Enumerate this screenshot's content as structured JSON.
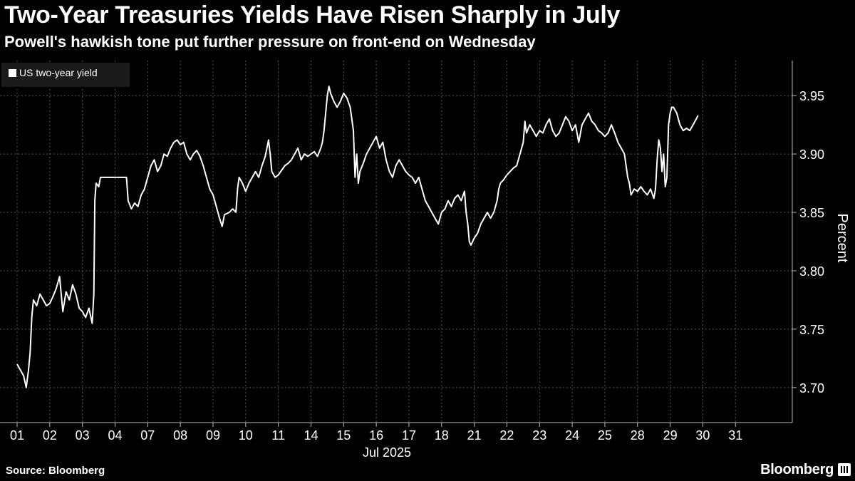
{
  "chart_data": {
    "type": "line",
    "title": "Two-Year Treasuries Yields Have Risen Sharply in July",
    "subtitle": "Powell's hawkish tone put further pressure on front-end on Wednesday",
    "ylabel": "Percent",
    "xlabel": "Jul 2025",
    "ylim": [
      3.67,
      3.98
    ],
    "yticks": [
      3.7,
      3.75,
      3.8,
      3.85,
      3.9,
      3.95
    ],
    "categories": [
      "01",
      "02",
      "03",
      "04",
      "07",
      "08",
      "09",
      "10",
      "11",
      "14",
      "15",
      "16",
      "17",
      "18",
      "21",
      "22",
      "23",
      "24",
      "25",
      "28",
      "29",
      "30",
      "31"
    ],
    "legend_position": "top-left",
    "grid": true,
    "series": [
      {
        "name": "US two-year yield",
        "color": "#ffffff",
        "points": [
          [
            0.0,
            3.72
          ],
          [
            0.1,
            3.715
          ],
          [
            0.2,
            3.71
          ],
          [
            0.28,
            3.7
          ],
          [
            0.35,
            3.715
          ],
          [
            0.4,
            3.73
          ],
          [
            0.45,
            3.76
          ],
          [
            0.5,
            3.775
          ],
          [
            0.6,
            3.77
          ],
          [
            0.7,
            3.78
          ],
          [
            0.8,
            3.775
          ],
          [
            0.9,
            3.77
          ],
          [
            1.0,
            3.772
          ],
          [
            1.1,
            3.778
          ],
          [
            1.2,
            3.785
          ],
          [
            1.3,
            3.795
          ],
          [
            1.4,
            3.765
          ],
          [
            1.5,
            3.782
          ],
          [
            1.6,
            3.775
          ],
          [
            1.7,
            3.788
          ],
          [
            1.8,
            3.78
          ],
          [
            1.9,
            3.768
          ],
          [
            2.0,
            3.765
          ],
          [
            2.1,
            3.76
          ],
          [
            2.2,
            3.768
          ],
          [
            2.3,
            3.755
          ],
          [
            2.35,
            3.78
          ],
          [
            2.38,
            3.86
          ],
          [
            2.42,
            3.875
          ],
          [
            2.5,
            3.872
          ],
          [
            2.55,
            3.88
          ],
          [
            2.6,
            3.88
          ],
          [
            2.7,
            3.88
          ],
          [
            2.8,
            3.88
          ],
          [
            2.9,
            3.88
          ],
          [
            3.0,
            3.88
          ],
          [
            3.1,
            3.88
          ],
          [
            3.2,
            3.88
          ],
          [
            3.3,
            3.88
          ],
          [
            3.35,
            3.88
          ],
          [
            3.4,
            3.86
          ],
          [
            3.5,
            3.853
          ],
          [
            3.6,
            3.858
          ],
          [
            3.7,
            3.855
          ],
          [
            3.8,
            3.865
          ],
          [
            3.9,
            3.87
          ],
          [
            4.0,
            3.88
          ],
          [
            4.1,
            3.89
          ],
          [
            4.2,
            3.895
          ],
          [
            4.3,
            3.885
          ],
          [
            4.4,
            3.89
          ],
          [
            4.5,
            3.9
          ],
          [
            4.6,
            3.898
          ],
          [
            4.7,
            3.905
          ],
          [
            4.8,
            3.91
          ],
          [
            4.9,
            3.912
          ],
          [
            5.0,
            3.908
          ],
          [
            5.1,
            3.91
          ],
          [
            5.2,
            3.9
          ],
          [
            5.3,
            3.895
          ],
          [
            5.4,
            3.9
          ],
          [
            5.5,
            3.903
          ],
          [
            5.6,
            3.898
          ],
          [
            5.7,
            3.89
          ],
          [
            5.8,
            3.88
          ],
          [
            5.9,
            3.87
          ],
          [
            6.0,
            3.865
          ],
          [
            6.1,
            3.855
          ],
          [
            6.2,
            3.845
          ],
          [
            6.28,
            3.838
          ],
          [
            6.35,
            3.848
          ],
          [
            6.5,
            3.85
          ],
          [
            6.6,
            3.853
          ],
          [
            6.7,
            3.85
          ],
          [
            6.75,
            3.87
          ],
          [
            6.8,
            3.88
          ],
          [
            6.9,
            3.875
          ],
          [
            7.0,
            3.868
          ],
          [
            7.1,
            3.875
          ],
          [
            7.2,
            3.88
          ],
          [
            7.3,
            3.885
          ],
          [
            7.4,
            3.88
          ],
          [
            7.5,
            3.89
          ],
          [
            7.6,
            3.898
          ],
          [
            7.7,
            3.912
          ],
          [
            7.75,
            3.9
          ],
          [
            7.8,
            3.885
          ],
          [
            7.9,
            3.88
          ],
          [
            8.0,
            3.882
          ],
          [
            8.1,
            3.886
          ],
          [
            8.2,
            3.89
          ],
          [
            8.3,
            3.892
          ],
          [
            8.4,
            3.895
          ],
          [
            8.5,
            3.9
          ],
          [
            8.6,
            3.905
          ],
          [
            8.7,
            3.895
          ],
          [
            8.8,
            3.9
          ],
          [
            8.9,
            3.898
          ],
          [
            9.0,
            3.9
          ],
          [
            9.1,
            3.902
          ],
          [
            9.2,
            3.898
          ],
          [
            9.3,
            3.905
          ],
          [
            9.35,
            3.91
          ],
          [
            9.4,
            3.92
          ],
          [
            9.45,
            3.935
          ],
          [
            9.5,
            3.95
          ],
          [
            9.55,
            3.958
          ],
          [
            9.6,
            3.952
          ],
          [
            9.7,
            3.945
          ],
          [
            9.8,
            3.94
          ],
          [
            9.9,
            3.945
          ],
          [
            10.0,
            3.952
          ],
          [
            10.1,
            3.948
          ],
          [
            10.2,
            3.94
          ],
          [
            10.3,
            3.92
          ],
          [
            10.35,
            3.88
          ],
          [
            10.4,
            3.9
          ],
          [
            10.45,
            3.875
          ],
          [
            10.5,
            3.885
          ],
          [
            10.6,
            3.892
          ],
          [
            10.7,
            3.9
          ],
          [
            10.8,
            3.905
          ],
          [
            10.9,
            3.91
          ],
          [
            11.0,
            3.915
          ],
          [
            11.1,
            3.905
          ],
          [
            11.2,
            3.91
          ],
          [
            11.3,
            3.895
          ],
          [
            11.4,
            3.885
          ],
          [
            11.5,
            3.88
          ],
          [
            11.6,
            3.89
          ],
          [
            11.7,
            3.895
          ],
          [
            11.8,
            3.89
          ],
          [
            11.9,
            3.885
          ],
          [
            12.0,
            3.882
          ],
          [
            12.1,
            3.88
          ],
          [
            12.2,
            3.875
          ],
          [
            12.3,
            3.88
          ],
          [
            12.4,
            3.87
          ],
          [
            12.5,
            3.86
          ],
          [
            12.6,
            3.855
          ],
          [
            12.7,
            3.85
          ],
          [
            12.8,
            3.845
          ],
          [
            12.9,
            3.84
          ],
          [
            13.0,
            3.85
          ],
          [
            13.1,
            3.853
          ],
          [
            13.2,
            3.86
          ],
          [
            13.3,
            3.855
          ],
          [
            13.4,
            3.862
          ],
          [
            13.5,
            3.865
          ],
          [
            13.6,
            3.86
          ],
          [
            13.7,
            3.868
          ],
          [
            13.75,
            3.85
          ],
          [
            13.8,
            3.84
          ],
          [
            13.85,
            3.825
          ],
          [
            13.9,
            3.822
          ],
          [
            14.0,
            3.828
          ],
          [
            14.1,
            3.832
          ],
          [
            14.2,
            3.84
          ],
          [
            14.3,
            3.845
          ],
          [
            14.4,
            3.85
          ],
          [
            14.5,
            3.845
          ],
          [
            14.6,
            3.85
          ],
          [
            14.7,
            3.86
          ],
          [
            14.75,
            3.87
          ],
          [
            14.8,
            3.875
          ],
          [
            14.9,
            3.878
          ],
          [
            15.0,
            3.882
          ],
          [
            15.1,
            3.885
          ],
          [
            15.2,
            3.888
          ],
          [
            15.3,
            3.89
          ],
          [
            15.4,
            3.9
          ],
          [
            15.5,
            3.91
          ],
          [
            15.55,
            3.928
          ],
          [
            15.6,
            3.918
          ],
          [
            15.7,
            3.925
          ],
          [
            15.8,
            3.92
          ],
          [
            15.9,
            3.915
          ],
          [
            16.0,
            3.92
          ],
          [
            16.1,
            3.918
          ],
          [
            16.2,
            3.925
          ],
          [
            16.3,
            3.93
          ],
          [
            16.4,
            3.92
          ],
          [
            16.5,
            3.915
          ],
          [
            16.6,
            3.918
          ],
          [
            16.7,
            3.925
          ],
          [
            16.8,
            3.932
          ],
          [
            16.9,
            3.928
          ],
          [
            17.0,
            3.92
          ],
          [
            17.1,
            3.925
          ],
          [
            17.2,
            3.91
          ],
          [
            17.3,
            3.925
          ],
          [
            17.4,
            3.93
          ],
          [
            17.5,
            3.935
          ],
          [
            17.6,
            3.928
          ],
          [
            17.7,
            3.925
          ],
          [
            17.8,
            3.92
          ],
          [
            17.9,
            3.918
          ],
          [
            18.0,
            3.915
          ],
          [
            18.1,
            3.918
          ],
          [
            18.2,
            3.925
          ],
          [
            18.3,
            3.918
          ],
          [
            18.4,
            3.91
          ],
          [
            18.5,
            3.905
          ],
          [
            18.6,
            3.9
          ],
          [
            18.7,
            3.88
          ],
          [
            18.75,
            3.875
          ],
          [
            18.8,
            3.865
          ],
          [
            18.9,
            3.87
          ],
          [
            19.0,
            3.868
          ],
          [
            19.1,
            3.872
          ],
          [
            19.2,
            3.868
          ],
          [
            19.3,
            3.865
          ],
          [
            19.4,
            3.87
          ],
          [
            19.5,
            3.862
          ],
          [
            19.55,
            3.87
          ],
          [
            19.6,
            3.895
          ],
          [
            19.65,
            3.912
          ],
          [
            19.7,
            3.905
          ],
          [
            19.75,
            3.885
          ],
          [
            19.8,
            3.9
          ],
          [
            19.85,
            3.872
          ],
          [
            19.9,
            3.88
          ],
          [
            19.95,
            3.925
          ],
          [
            20.0,
            3.935
          ],
          [
            20.05,
            3.94
          ],
          [
            20.1,
            3.94
          ],
          [
            20.2,
            3.935
          ],
          [
            20.3,
            3.925
          ],
          [
            20.4,
            3.92
          ],
          [
            20.5,
            3.922
          ],
          [
            20.6,
            3.92
          ],
          [
            20.7,
            3.925
          ],
          [
            20.8,
            3.93
          ],
          [
            20.85,
            3.933
          ]
        ]
      }
    ]
  }
}
